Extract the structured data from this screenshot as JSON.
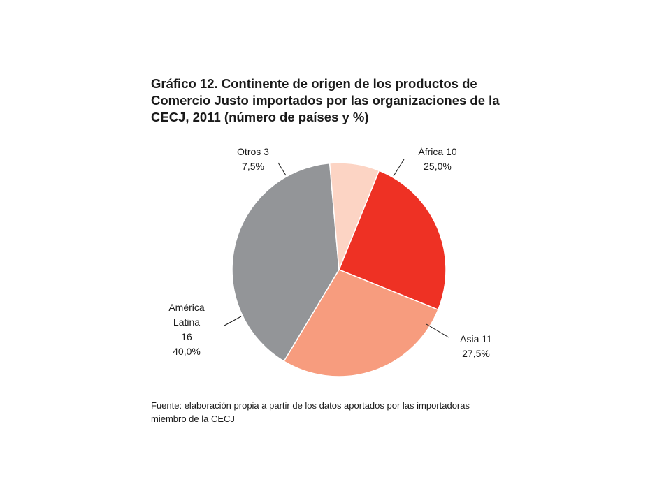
{
  "figure": {
    "title_lines": [
      "Gráfico 12. Continente de origen de los productos de",
      "Comercio Justo importados por las organizaciones de la",
      "CECJ, 2011 (número de países y %)"
    ],
    "source_lines": [
      "Fuente: elaboración propia a partir de los datos aportados por las importadoras",
      "miembro de la CECJ"
    ]
  },
  "chart_data": {
    "type": "pie",
    "title": "Gráfico 12. Continente de origen de los productos de Comercio Justo importados por las organizaciones de la CECJ, 2011 (número de países y %)",
    "slices": [
      {
        "name": "África",
        "value": 10,
        "percent": "25,0%",
        "color": "#ee3124",
        "label_lines": [
          "África 10",
          "25,0%"
        ]
      },
      {
        "name": "Asia",
        "value": 11,
        "percent": "27,5%",
        "color": "#f79c7e",
        "label_lines": [
          "Asia 11",
          "27,5%"
        ]
      },
      {
        "name": "América Latina",
        "value": 16,
        "percent": "40,0%",
        "color": "#939598",
        "label_lines": [
          "América",
          "Latina",
          "16",
          "40,0%"
        ]
      },
      {
        "name": "Otros",
        "value": 3,
        "percent": "7,5%",
        "color": "#fcd4c4",
        "label_lines": [
          "Otros 3",
          "7,5%"
        ]
      }
    ],
    "start_angle_deg": 22,
    "direction": "clockwise",
    "legend": "none"
  }
}
